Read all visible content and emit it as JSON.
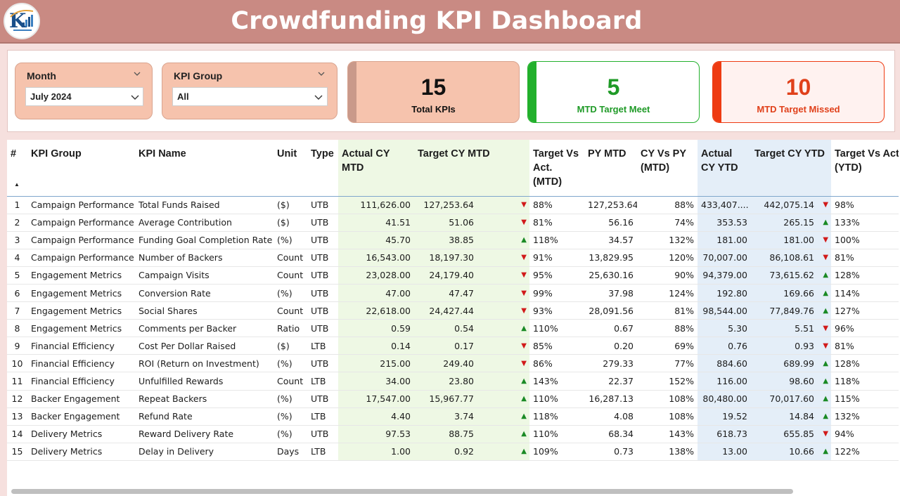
{
  "header": {
    "title": "Crowdfunding KPI Dashboard",
    "logo_icon": "analytics-logo-icon"
  },
  "filters": {
    "month": {
      "title": "Month",
      "value": "July 2024"
    },
    "kpi_group": {
      "title": "KPI Group",
      "value": "All"
    }
  },
  "cards": [
    {
      "value": "15",
      "label": "Total KPIs",
      "accent": "#c9998a",
      "bg": "#f6c3ad",
      "color": "#111111"
    },
    {
      "value": "5",
      "label": "MTD Target Meet",
      "accent": "#22b02c",
      "bg": "#ffffff",
      "color": "#1f9a27"
    },
    {
      "value": "10",
      "label": "MTD Target Missed",
      "accent": "#ee3b12",
      "bg": "#fff2f0",
      "color": "#e0401a"
    }
  ],
  "table": {
    "columns": [
      "#",
      "KPI Group",
      "KPI Name",
      "Unit",
      "Type",
      "Actual CY MTD",
      "Target CY MTD",
      "Target Vs Act. (MTD)",
      "PY MTD",
      "CY Vs PY (MTD)",
      "Actual CY YTD",
      "Target CY YTD",
      "Target Vs Act. (YTD)"
    ],
    "rows": [
      [
        "1",
        "Campaign Performance",
        "Total Funds Raised",
        "($)",
        "UTB",
        "111,626.00",
        "127,253.64",
        "down",
        "88%",
        "127,253.64",
        "88%",
        "433,407....",
        "442,075.14",
        "down",
        "98%"
      ],
      [
        "2",
        "Campaign Performance",
        "Average Contribution",
        "($)",
        "UTB",
        "41.51",
        "51.06",
        "down",
        "81%",
        "56.16",
        "74%",
        "353.53",
        "265.15",
        "up",
        "133%"
      ],
      [
        "3",
        "Campaign Performance",
        "Funding Goal Completion Rate",
        "(%)",
        "UTB",
        "45.70",
        "38.85",
        "up",
        "118%",
        "34.57",
        "132%",
        "181.00",
        "181.00",
        "down",
        "100%"
      ],
      [
        "4",
        "Campaign Performance",
        "Number of Backers",
        "Count",
        "UTB",
        "16,543.00",
        "18,197.30",
        "down",
        "91%",
        "13,829.95",
        "120%",
        "70,007.00",
        "86,108.61",
        "down",
        "81%"
      ],
      [
        "5",
        "Engagement Metrics",
        "Campaign Visits",
        "Count",
        "UTB",
        "23,028.00",
        "24,179.40",
        "down",
        "95%",
        "25,630.16",
        "90%",
        "94,379.00",
        "73,615.62",
        "up",
        "128%"
      ],
      [
        "6",
        "Engagement Metrics",
        "Conversion Rate",
        "(%)",
        "UTB",
        "47.00",
        "47.47",
        "down",
        "99%",
        "37.98",
        "124%",
        "192.80",
        "169.66",
        "up",
        "114%"
      ],
      [
        "7",
        "Engagement Metrics",
        "Social Shares",
        "Count",
        "UTB",
        "22,618.00",
        "24,427.44",
        "down",
        "93%",
        "28,091.56",
        "81%",
        "98,544.00",
        "77,849.76",
        "up",
        "127%"
      ],
      [
        "8",
        "Engagement Metrics",
        "Comments per Backer",
        "Ratio",
        "UTB",
        "0.59",
        "0.54",
        "up",
        "110%",
        "0.67",
        "88%",
        "5.30",
        "5.51",
        "down",
        "96%"
      ],
      [
        "9",
        "Financial Efficiency",
        "Cost Per Dollar Raised",
        "($)",
        "LTB",
        "0.14",
        "0.17",
        "down",
        "85%",
        "0.20",
        "69%",
        "0.76",
        "0.93",
        "down",
        "81%"
      ],
      [
        "10",
        "Financial Efficiency",
        "ROI (Return on Investment)",
        "(%)",
        "UTB",
        "215.00",
        "249.40",
        "down",
        "86%",
        "279.33",
        "77%",
        "884.60",
        "689.99",
        "up",
        "128%"
      ],
      [
        "11",
        "Financial Efficiency",
        "Unfulfilled Rewards",
        "Count",
        "LTB",
        "34.00",
        "23.80",
        "up",
        "143%",
        "22.37",
        "152%",
        "116.00",
        "98.60",
        "up",
        "118%"
      ],
      [
        "12",
        "Backer Engagement",
        "Repeat Backers",
        "(%)",
        "UTB",
        "17,547.00",
        "15,967.77",
        "up",
        "110%",
        "16,287.13",
        "108%",
        "80,480.00",
        "70,017.60",
        "up",
        "115%"
      ],
      [
        "13",
        "Backer Engagement",
        "Refund Rate",
        "(%)",
        "LTB",
        "4.40",
        "3.74",
        "up",
        "118%",
        "4.08",
        "108%",
        "19.52",
        "14.84",
        "up",
        "132%"
      ],
      [
        "14",
        "Delivery Metrics",
        "Reward Delivery Rate",
        "(%)",
        "UTB",
        "97.53",
        "88.75",
        "up",
        "110%",
        "68.34",
        "143%",
        "618.73",
        "655.85",
        "down",
        "94%"
      ],
      [
        "15",
        "Delivery Metrics",
        "Delay in Delivery",
        "Days",
        "LTB",
        "1.00",
        "0.92",
        "up",
        "109%",
        "0.73",
        "138%",
        "13.00",
        "10.66",
        "up",
        "122%"
      ]
    ]
  },
  "arrow_glyphs": {
    "up": "▲",
    "down": "▼"
  },
  "colors": {
    "up": "#1a8a25",
    "down": "#d11a1a",
    "header_bg": "#c98a83",
    "mtd_bg": "#eef8e4",
    "ytd_bg": "#e4eef8"
  }
}
